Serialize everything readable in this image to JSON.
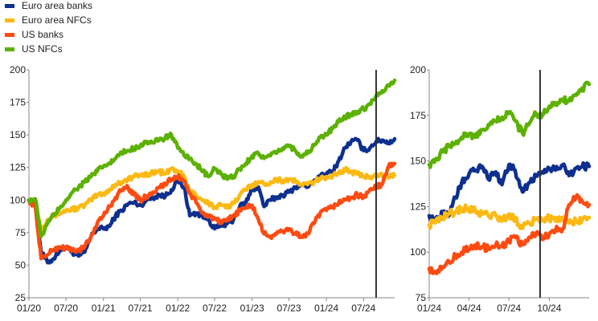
{
  "colors": {
    "Euro area banks": "#0d2f8f",
    "Euro area NFCs": "#fdb913",
    "US banks": "#ff4b12",
    "US NFCs": "#5cb100"
  },
  "chart_data": [
    {
      "type": "line",
      "legend_position": "top-left",
      "grid": false,
      "x_ticks": [
        "01/20",
        "07/20",
        "01/21",
        "07/21",
        "01/22",
        "07/22",
        "01/23",
        "07/23",
        "01/24",
        "07/24"
      ],
      "x_range": [
        "2020-01",
        "2024-12"
      ],
      "ylim": [
        25,
        200
      ],
      "y_ticks": [
        25,
        50,
        75,
        100,
        125,
        150,
        175,
        200
      ],
      "vertical_line_x": "2024-09",
      "x": [
        "2020-01",
        "2020-02",
        "2020-03",
        "2020-04",
        "2020-05",
        "2020-06",
        "2020-07",
        "2020-08",
        "2020-09",
        "2020-10",
        "2020-11",
        "2020-12",
        "2021-01",
        "2021-02",
        "2021-03",
        "2021-04",
        "2021-05",
        "2021-06",
        "2021-07",
        "2021-08",
        "2021-09",
        "2021-10",
        "2021-11",
        "2021-12",
        "2022-01",
        "2022-02",
        "2022-03",
        "2022-04",
        "2022-05",
        "2022-06",
        "2022-07",
        "2022-08",
        "2022-09",
        "2022-10",
        "2022-11",
        "2022-12",
        "2023-01",
        "2023-02",
        "2023-03",
        "2023-04",
        "2023-05",
        "2023-06",
        "2023-07",
        "2023-08",
        "2023-09",
        "2023-10",
        "2023-11",
        "2023-12",
        "2024-01",
        "2024-02",
        "2024-03",
        "2024-04",
        "2024-05",
        "2024-06",
        "2024-07",
        "2024-08",
        "2024-09",
        "2024-10",
        "2024-11",
        "2024-12"
      ],
      "series": [
        {
          "name": "Euro area banks",
          "values": [
            100,
            97,
            60,
            52,
            55,
            62,
            64,
            60,
            57,
            60,
            72,
            78,
            78,
            80,
            88,
            92,
            97,
            98,
            96,
            100,
            102,
            104,
            103,
            108,
            115,
            110,
            88,
            90,
            88,
            85,
            78,
            80,
            82,
            85,
            95,
            98,
            108,
            110,
            95,
            100,
            102,
            104,
            106,
            110,
            112,
            110,
            115,
            118,
            120,
            122,
            130,
            140,
            145,
            146,
            138,
            140,
            145,
            146,
            144,
            147
          ]
        },
        {
          "name": "Euro area NFCs",
          "values": [
            100,
            98,
            78,
            85,
            88,
            90,
            92,
            93,
            94,
            96,
            100,
            104,
            105,
            108,
            112,
            114,
            116,
            118,
            119,
            120,
            121,
            122,
            120,
            124,
            122,
            118,
            106,
            104,
            100,
            98,
            94,
            96,
            94,
            98,
            104,
            108,
            112,
            114,
            112,
            114,
            116,
            115,
            116,
            114,
            112,
            112,
            114,
            116,
            118,
            119,
            121,
            123,
            122,
            120,
            118,
            118,
            120,
            119,
            117,
            119
          ]
        },
        {
          "name": "US banks",
          "values": [
            100,
            95,
            55,
            58,
            62,
            64,
            63,
            62,
            61,
            64,
            72,
            82,
            88,
            95,
            102,
            108,
            110,
            104,
            100,
            103,
            106,
            110,
            112,
            116,
            118,
            115,
            105,
            98,
            90,
            88,
            86,
            82,
            84,
            88,
            92,
            94,
            96,
            85,
            74,
            72,
            74,
            76,
            78,
            74,
            72,
            74,
            82,
            90,
            92,
            95,
            98,
            100,
            102,
            104,
            102,
            108,
            110,
            112,
            126,
            128
          ]
        },
        {
          "name": "US NFCs",
          "values": [
            100,
            101,
            72,
            82,
            88,
            94,
            100,
            106,
            110,
            114,
            118,
            122,
            126,
            128,
            132,
            136,
            138,
            140,
            142,
            145,
            144,
            146,
            148,
            150,
            140,
            134,
            132,
            128,
            122,
            118,
            124,
            120,
            116,
            118,
            124,
            128,
            134,
            136,
            132,
            134,
            136,
            140,
            142,
            138,
            134,
            136,
            142,
            148,
            150,
            155,
            160,
            164,
            166,
            168,
            170,
            174,
            180,
            184,
            188,
            192
          ]
        }
      ]
    },
    {
      "type": "line",
      "legend_position": "none",
      "grid": false,
      "x_ticks": [
        "01/24",
        "04/24",
        "07/24",
        "10/24"
      ],
      "x_range": [
        "2024-01-01",
        "2024-12-31"
      ],
      "ylim": [
        75,
        200
      ],
      "y_ticks": [
        75,
        100,
        125,
        150,
        175,
        200
      ],
      "vertical_line_x": "2024-09-10",
      "x": [
        "2024-01-01",
        "2024-01-15",
        "2024-02-01",
        "2024-02-15",
        "2024-03-01",
        "2024-03-15",
        "2024-04-01",
        "2024-04-15",
        "2024-05-01",
        "2024-05-15",
        "2024-06-01",
        "2024-06-15",
        "2024-07-01",
        "2024-07-15",
        "2024-08-01",
        "2024-08-15",
        "2024-09-01",
        "2024-09-15",
        "2024-10-01",
        "2024-10-15",
        "2024-11-01",
        "2024-11-15",
        "2024-12-01",
        "2024-12-15",
        "2024-12-31"
      ],
      "series": [
        {
          "name": "Euro area banks",
          "values": [
            120,
            118,
            121,
            120,
            130,
            138,
            143,
            145,
            147,
            140,
            144,
            137,
            148,
            145,
            133,
            138,
            142,
            144,
            146,
            145,
            148,
            142,
            146,
            147,
            147
          ]
        },
        {
          "name": "Euro area NFCs",
          "values": [
            115,
            116,
            119,
            121,
            122,
            124,
            124,
            123,
            121,
            120,
            120,
            117,
            121,
            118,
            113,
            116,
            118,
            118,
            119,
            117,
            118,
            116,
            117,
            118,
            119
          ]
        },
        {
          "name": "US banks",
          "values": [
            91,
            89,
            92,
            95,
            98,
            100,
            102,
            104,
            103,
            102,
            104,
            103,
            106,
            108,
            104,
            108,
            110,
            107,
            110,
            112,
            113,
            126,
            130,
            128,
            126
          ]
        },
        {
          "name": "US NFCs",
          "values": [
            148,
            151,
            155,
            158,
            160,
            163,
            165,
            163,
            167,
            170,
            172,
            174,
            176,
            172,
            165,
            170,
            176,
            175,
            180,
            182,
            184,
            183,
            186,
            190,
            192
          ]
        }
      ]
    }
  ]
}
